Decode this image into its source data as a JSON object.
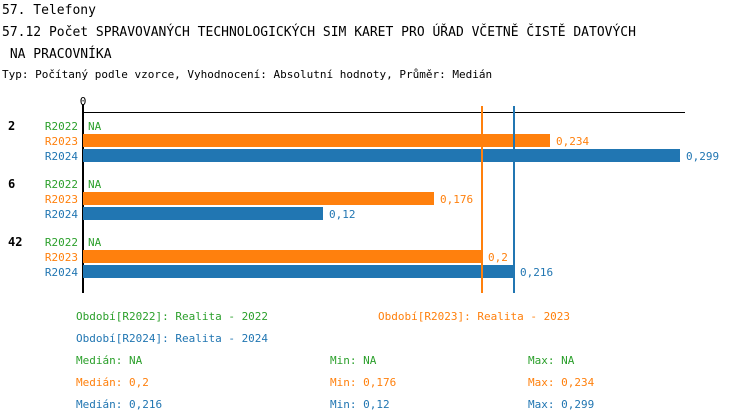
{
  "header": {
    "line1": "57. Telefony",
    "line2": "57.12 Počet SPRAVOVANÝCH TECHNOLOGICKÝCH SIM KARET PRO ÚŘAD VČETNĚ ČISTĚ DATOVÝCH",
    "line3": " NA PRACOVNÍKA",
    "meta": "Typ: Počítaný podle vzorce, Vyhodnocení: Absolutní hodnoty, Průměr: Medián"
  },
  "colors": {
    "R2022": "#2CA02C",
    "R2023": "#FF800D",
    "R2024": "#2176B2",
    "axis": "#000000"
  },
  "chart_data": {
    "type": "bar",
    "orientation": "horizontal",
    "x_axis": {
      "tick_label": "0",
      "xlim": [
        0,
        0.3016
      ]
    },
    "series_names": [
      "R2022",
      "R2023",
      "R2024"
    ],
    "groups": [
      {
        "category": "2",
        "bars": [
          {
            "series": "R2022",
            "value": null,
            "label": "NA"
          },
          {
            "series": "R2023",
            "value": 0.234,
            "label": "0,234"
          },
          {
            "series": "R2024",
            "value": 0.299,
            "label": "0,299"
          }
        ]
      },
      {
        "category": "6",
        "bars": [
          {
            "series": "R2022",
            "value": null,
            "label": "NA"
          },
          {
            "series": "R2023",
            "value": 0.176,
            "label": "0,176"
          },
          {
            "series": "R2024",
            "value": 0.12,
            "label": "0,12"
          }
        ]
      },
      {
        "category": "42",
        "bars": [
          {
            "series": "R2022",
            "value": null,
            "label": "NA"
          },
          {
            "series": "R2023",
            "value": 0.2,
            "label": "0,2"
          },
          {
            "series": "R2024",
            "value": 0.216,
            "label": "0,216"
          }
        ]
      }
    ],
    "reference_lines": [
      {
        "series": "R2023",
        "value": 0.2
      },
      {
        "series": "R2024",
        "value": 0.216
      }
    ]
  },
  "legend": {
    "periods": [
      {
        "series": "R2022",
        "label": "Období[R2022]: Realita - 2022"
      },
      {
        "series": "R2023",
        "label": "Období[R2023]: Realita - 2023"
      },
      {
        "series": "R2024",
        "label": "Období[R2024]: Realita - 2024"
      }
    ],
    "stats": [
      {
        "series": "R2022",
        "median": "Medián: NA",
        "min": "Min: NA",
        "max": "Max: NA"
      },
      {
        "series": "R2023",
        "median": "Medián: 0,2",
        "min": "Min: 0,176",
        "max": "Max: 0,234"
      },
      {
        "series": "R2024",
        "median": "Medián: 0,216",
        "min": "Min: 0,12",
        "max": "Max: 0,299"
      }
    ]
  }
}
